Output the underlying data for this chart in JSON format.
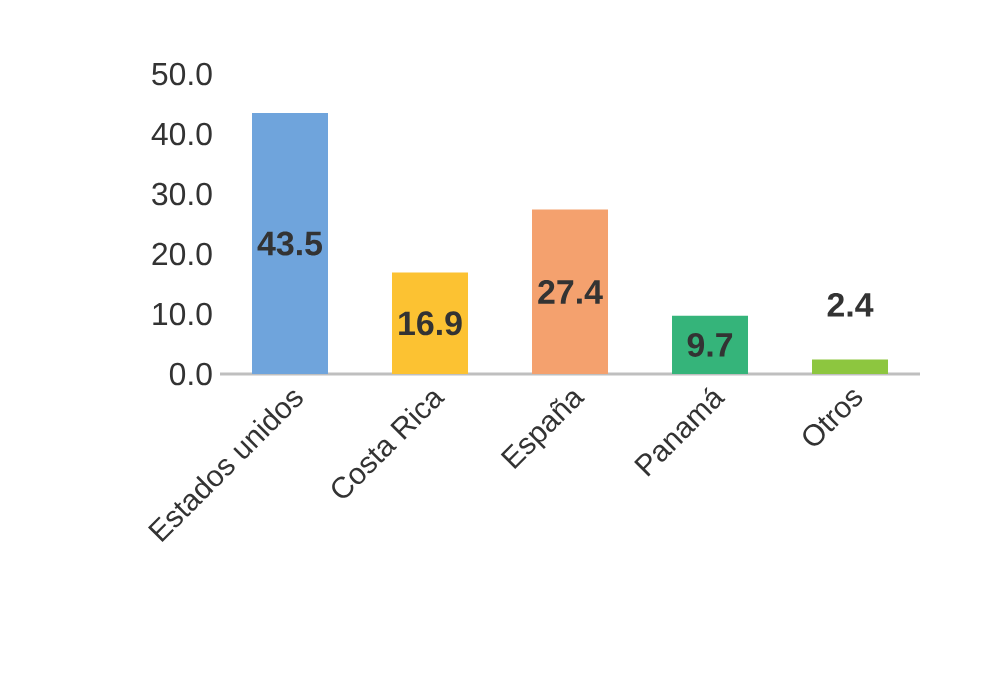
{
  "chart_data": {
    "type": "bar",
    "categories": [
      "Estados unidos",
      "Costa Rica",
      "España",
      "Panamá",
      "Otros"
    ],
    "values": [
      43.5,
      16.9,
      27.4,
      9.7,
      2.4
    ],
    "colors": [
      "#6fa4dc",
      "#fcc232",
      "#f4a16e",
      "#35b47a",
      "#8dc63f"
    ],
    "data_labels": true,
    "ylim": [
      0,
      50
    ],
    "yticks": [
      {
        "value": 0,
        "label": "0.0"
      },
      {
        "value": 10,
        "label": "10.0"
      },
      {
        "value": 20,
        "label": "20.0"
      },
      {
        "value": 30,
        "label": "30.0"
      },
      {
        "value": 40,
        "label": "40.0"
      },
      {
        "value": 50,
        "label": "50.0"
      }
    ],
    "grid": false
  }
}
